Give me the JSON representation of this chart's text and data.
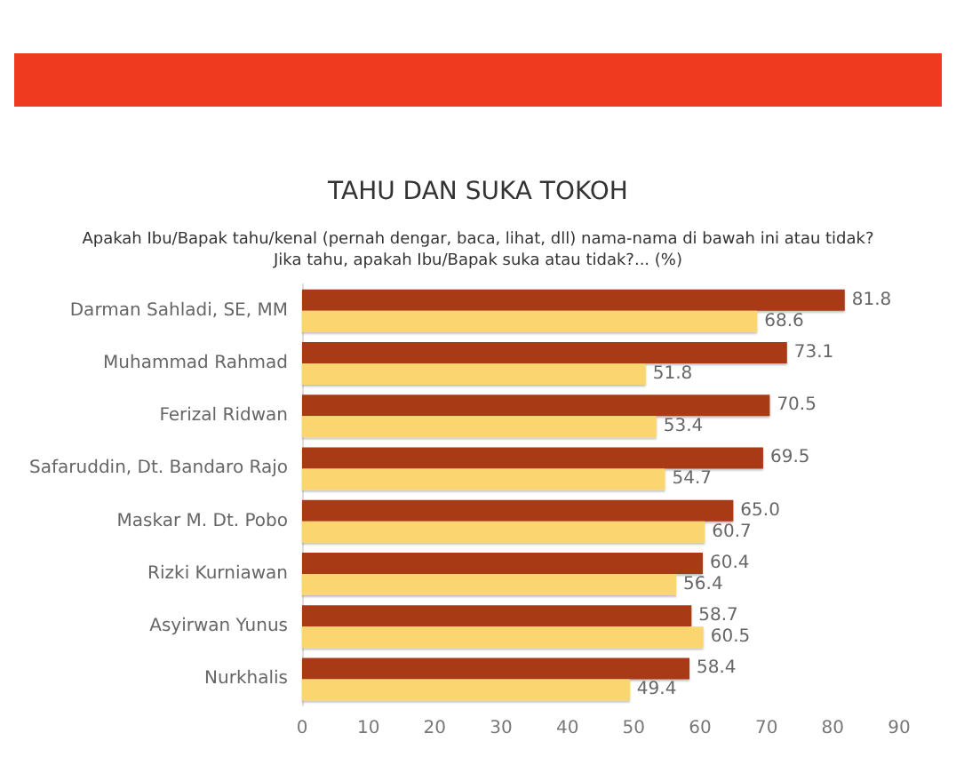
{
  "chart_data": {
    "type": "bar",
    "orientation": "horizontal",
    "title": "TAHU DAN SUKA TOKOH",
    "subtitle": "Apakah Ibu/Bapak tahu/kenal (pernah dengar, baca, lihat, dll) nama-nama di bawah ini atau tidak?\nJika tahu, apakah Ibu/Bapak suka atau tidak?... (%)",
    "categories": [
      "Darman Sahladi, SE, MM",
      "Muhammad Rahmad",
      "Ferizal Ridwan",
      "Safaruddin, Dt. Bandaro Rajo",
      "Maskar M. Dt. Pobo",
      "Rizki Kurniawan",
      "Asyirwan Yunus",
      "Nurkhalis"
    ],
    "series": [
      {
        "color": "#a83b19",
        "values": [
          81.8,
          73.1,
          70.5,
          69.5,
          65.0,
          60.4,
          58.7,
          58.4
        ],
        "value_labels": [
          "81.8",
          "73.1",
          "70.5",
          "69.5",
          "65.0",
          "60.4",
          "58.7",
          "58.4"
        ]
      },
      {
        "color": "#fbd66f",
        "values": [
          68.6,
          51.8,
          53.4,
          54.7,
          60.7,
          56.4,
          60.5,
          49.4
        ],
        "value_labels": [
          "68.6",
          "51.8",
          "53.4",
          "54.7",
          "60.7",
          "56.4",
          "60.5",
          "49.4"
        ]
      }
    ],
    "xlim": [
      0,
      90
    ],
    "xticks": [
      0,
      10,
      20,
      30,
      40,
      50,
      60,
      70,
      80,
      90
    ],
    "grid": false
  }
}
